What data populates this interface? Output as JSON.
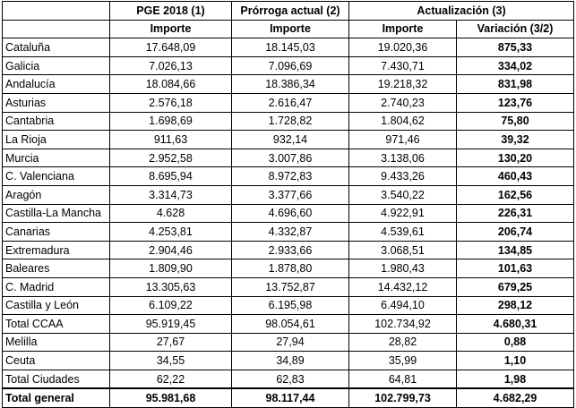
{
  "table": {
    "header": {
      "row1": [
        "PGE 2018 (1)",
        "Prórroga actual (2)",
        "Actualización (3)"
      ],
      "row2": [
        "Importe",
        "Importe",
        "Importe",
        "Variación (3/2)"
      ]
    },
    "rows": [
      [
        "Cataluña",
        "17.648,09",
        "18.145,03",
        "19.020,36",
        "875,33"
      ],
      [
        "Galicia",
        "7.026,13",
        "7.096,69",
        "7.430,71",
        "334,02"
      ],
      [
        "Andalucía",
        "18.084,66",
        "18.386,34",
        "19.218,32",
        "831,98"
      ],
      [
        "Asturias",
        "2.576,18",
        "2.616,47",
        "2.740,23",
        "123,76"
      ],
      [
        "Cantabria",
        "1.698,69",
        "1.728,82",
        "1.804,62",
        "75,80"
      ],
      [
        "La Rioja",
        "911,63",
        "932,14",
        "971,46",
        "39,32"
      ],
      [
        "Murcia",
        "2.952,58",
        "3.007,86",
        "3.138,06",
        "130,20"
      ],
      [
        "C. Valenciana",
        "8.695,94",
        "8.972,83",
        "9.433,26",
        "460,43"
      ],
      [
        "Aragón",
        "3.314,73",
        "3.377,66",
        "3.540,22",
        "162,56"
      ],
      [
        "Castilla-La Mancha",
        "4.628",
        "4.696,60",
        "4.922,91",
        "226,31"
      ],
      [
        "Canarias",
        "4.253,81",
        "4.332,87",
        "4.539,61",
        "206,74"
      ],
      [
        "Extremadura",
        "2.904,46",
        "2.933,66",
        "3.068,51",
        "134,85"
      ],
      [
        "Baleares",
        "1.809,90",
        "1.878,80",
        "1.980,43",
        "101,63"
      ],
      [
        "C. Madrid",
        "13.305,63",
        "13.752,87",
        "14.432,12",
        "679,25"
      ],
      [
        "Castilla y León",
        "6.109,22",
        "6.195,98",
        "6.494,10",
        "298,12"
      ],
      [
        "Total CCAA",
        "95.919,45",
        "98.054,61",
        "102.734,92",
        "4.680,31"
      ],
      [
        "Melilla",
        "27,67",
        "27,94",
        "28,82",
        "0,88"
      ],
      [
        "Ceuta",
        "34,55",
        "34,89",
        "35,99",
        "1,10"
      ],
      [
        "Total Ciudades",
        "62,22",
        "62,83",
        "64,81",
        "1,98"
      ],
      [
        "Total general",
        "95.981,68",
        "98.117,44",
        "102.799,73",
        "4.682,29"
      ]
    ]
  }
}
